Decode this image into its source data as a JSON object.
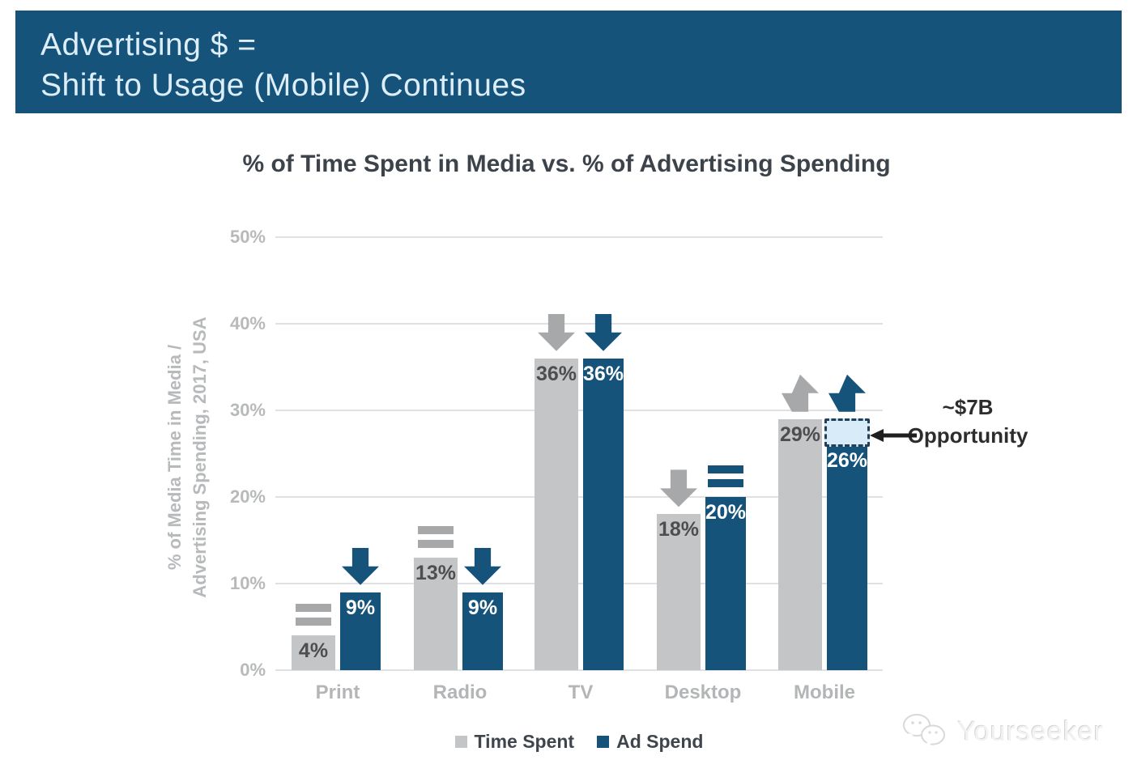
{
  "header": {
    "line1": "Advertising $ =",
    "line2": "Shift to Usage (Mobile) Continues"
  },
  "chart_data": {
    "type": "bar",
    "title": "% of Time Spent in Media vs. % of Advertising Spending",
    "ylabel_line1": "% of Media Time in Media /",
    "ylabel_line2": "Advertising Spending, 2017, USA",
    "categories": [
      "Print",
      "Radio",
      "TV",
      "Desktop",
      "Mobile"
    ],
    "series": [
      {
        "name": "Time Spent",
        "color": "#c4c5c7",
        "values": [
          4,
          13,
          36,
          18,
          29
        ],
        "trend": [
          "flat",
          "flat",
          "down",
          "down",
          "up"
        ]
      },
      {
        "name": "Ad Spend",
        "color": "#15537b",
        "values": [
          9,
          9,
          36,
          20,
          26
        ],
        "trend": [
          "down",
          "down",
          "down",
          "flat",
          "up"
        ]
      }
    ],
    "value_labels": [
      [
        "4%",
        "13%",
        "36%",
        "18%",
        "29%"
      ],
      [
        "9%",
        "9%",
        "36%",
        "20%",
        "26%"
      ]
    ],
    "ticks": [
      "0%",
      "10%",
      "20%",
      "30%",
      "40%",
      "50%"
    ],
    "ylim": [
      0,
      50
    ],
    "grid": true,
    "legend_position": "bottom",
    "opportunity": {
      "label_line1": "~$7B",
      "label_line2": "Opportunity",
      "category": "Mobile",
      "series": "Ad Spend",
      "gap_from": 26,
      "gap_to": 29
    }
  },
  "colors": {
    "header_bg": "#15537b",
    "header_text": "#ddeef9",
    "bar_gray": "#c4c5c7",
    "bar_blue": "#15537b",
    "arrow_gray": "#a7a8aa",
    "arrow_blue": "#15537b",
    "gridline": "#e0e1e2",
    "gap_box_fill": "#d7ebf8",
    "gap_box_border": "#20405c",
    "value_text_gray_bar": "#4c4e50",
    "value_text_blue_bar": "#ffffff"
  },
  "watermark": {
    "text": "Yourseeker"
  }
}
